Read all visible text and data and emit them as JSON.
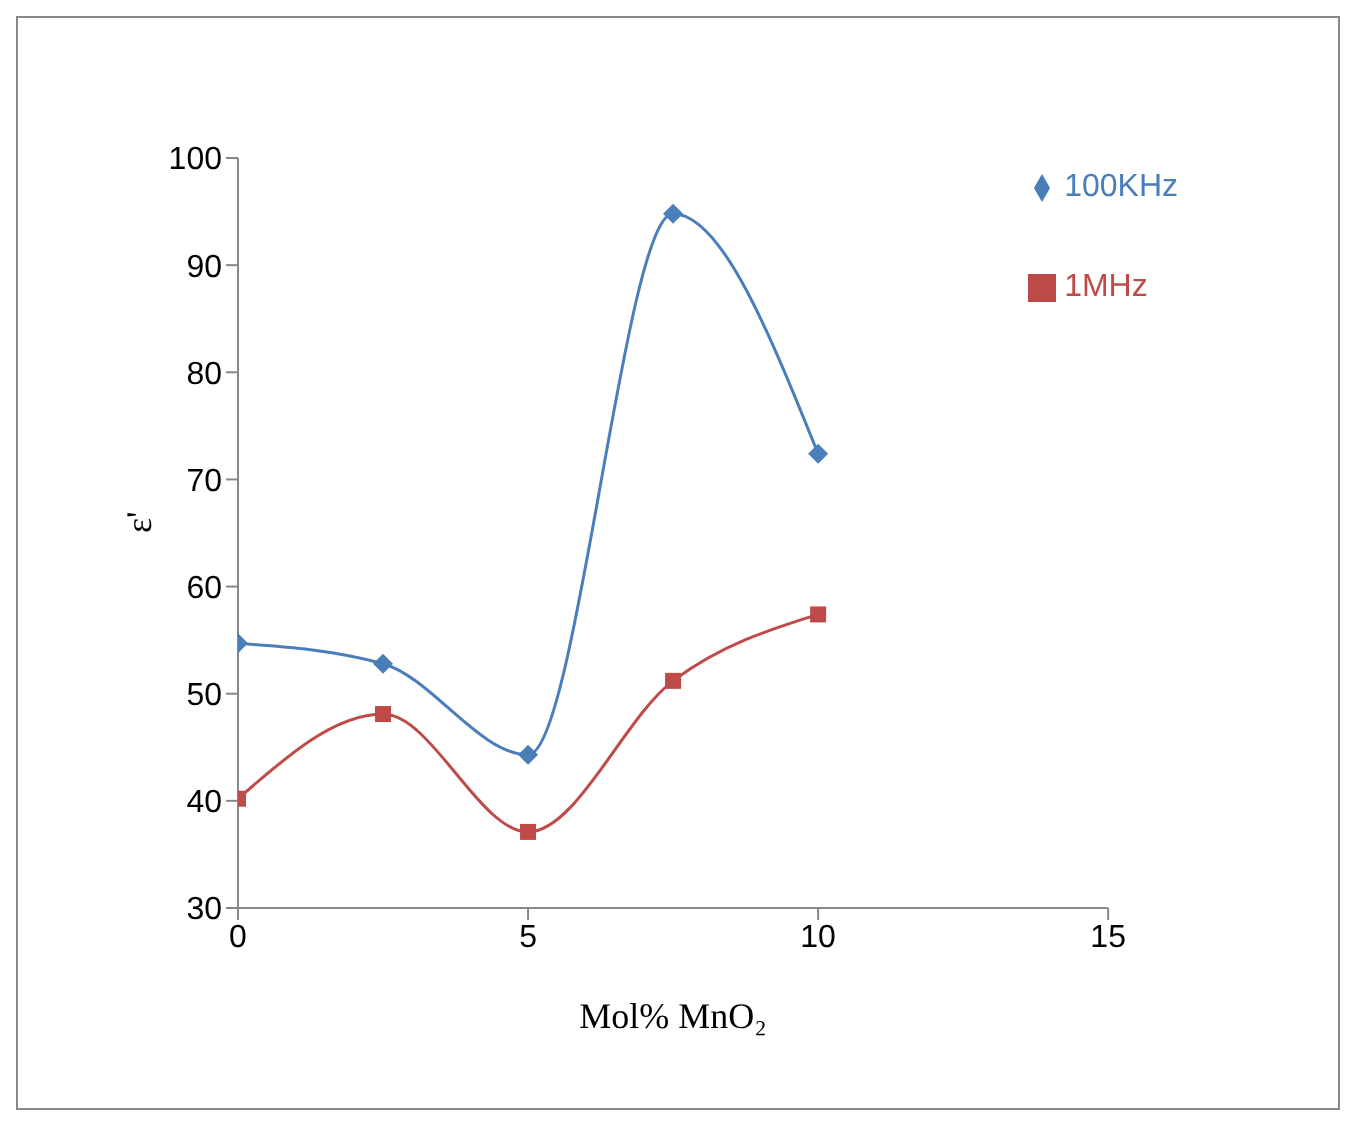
{
  "chart_data": {
    "type": "line",
    "xlabel": "Mol% MnO₂",
    "ylabel": "ε'",
    "x": [
      0,
      2.5,
      5,
      7.5,
      10
    ],
    "series": [
      {
        "name": "100KHz",
        "color": "#4a7ebb",
        "marker": "diamond",
        "values": [
          54.7,
          52.8,
          44.3,
          94.8,
          72.4
        ]
      },
      {
        "name": "1MHz",
        "color": "#be4b48",
        "marker": "square",
        "values": [
          40.2,
          48.1,
          37.1,
          51.2,
          57.4
        ]
      }
    ],
    "xlim": [
      0,
      15
    ],
    "xticks": [
      0,
      5,
      10,
      15
    ],
    "ylim": [
      30,
      100
    ],
    "yticks": [
      30,
      40,
      50,
      60,
      70,
      80,
      90,
      100
    ],
    "grid": false,
    "legend": "top right"
  }
}
